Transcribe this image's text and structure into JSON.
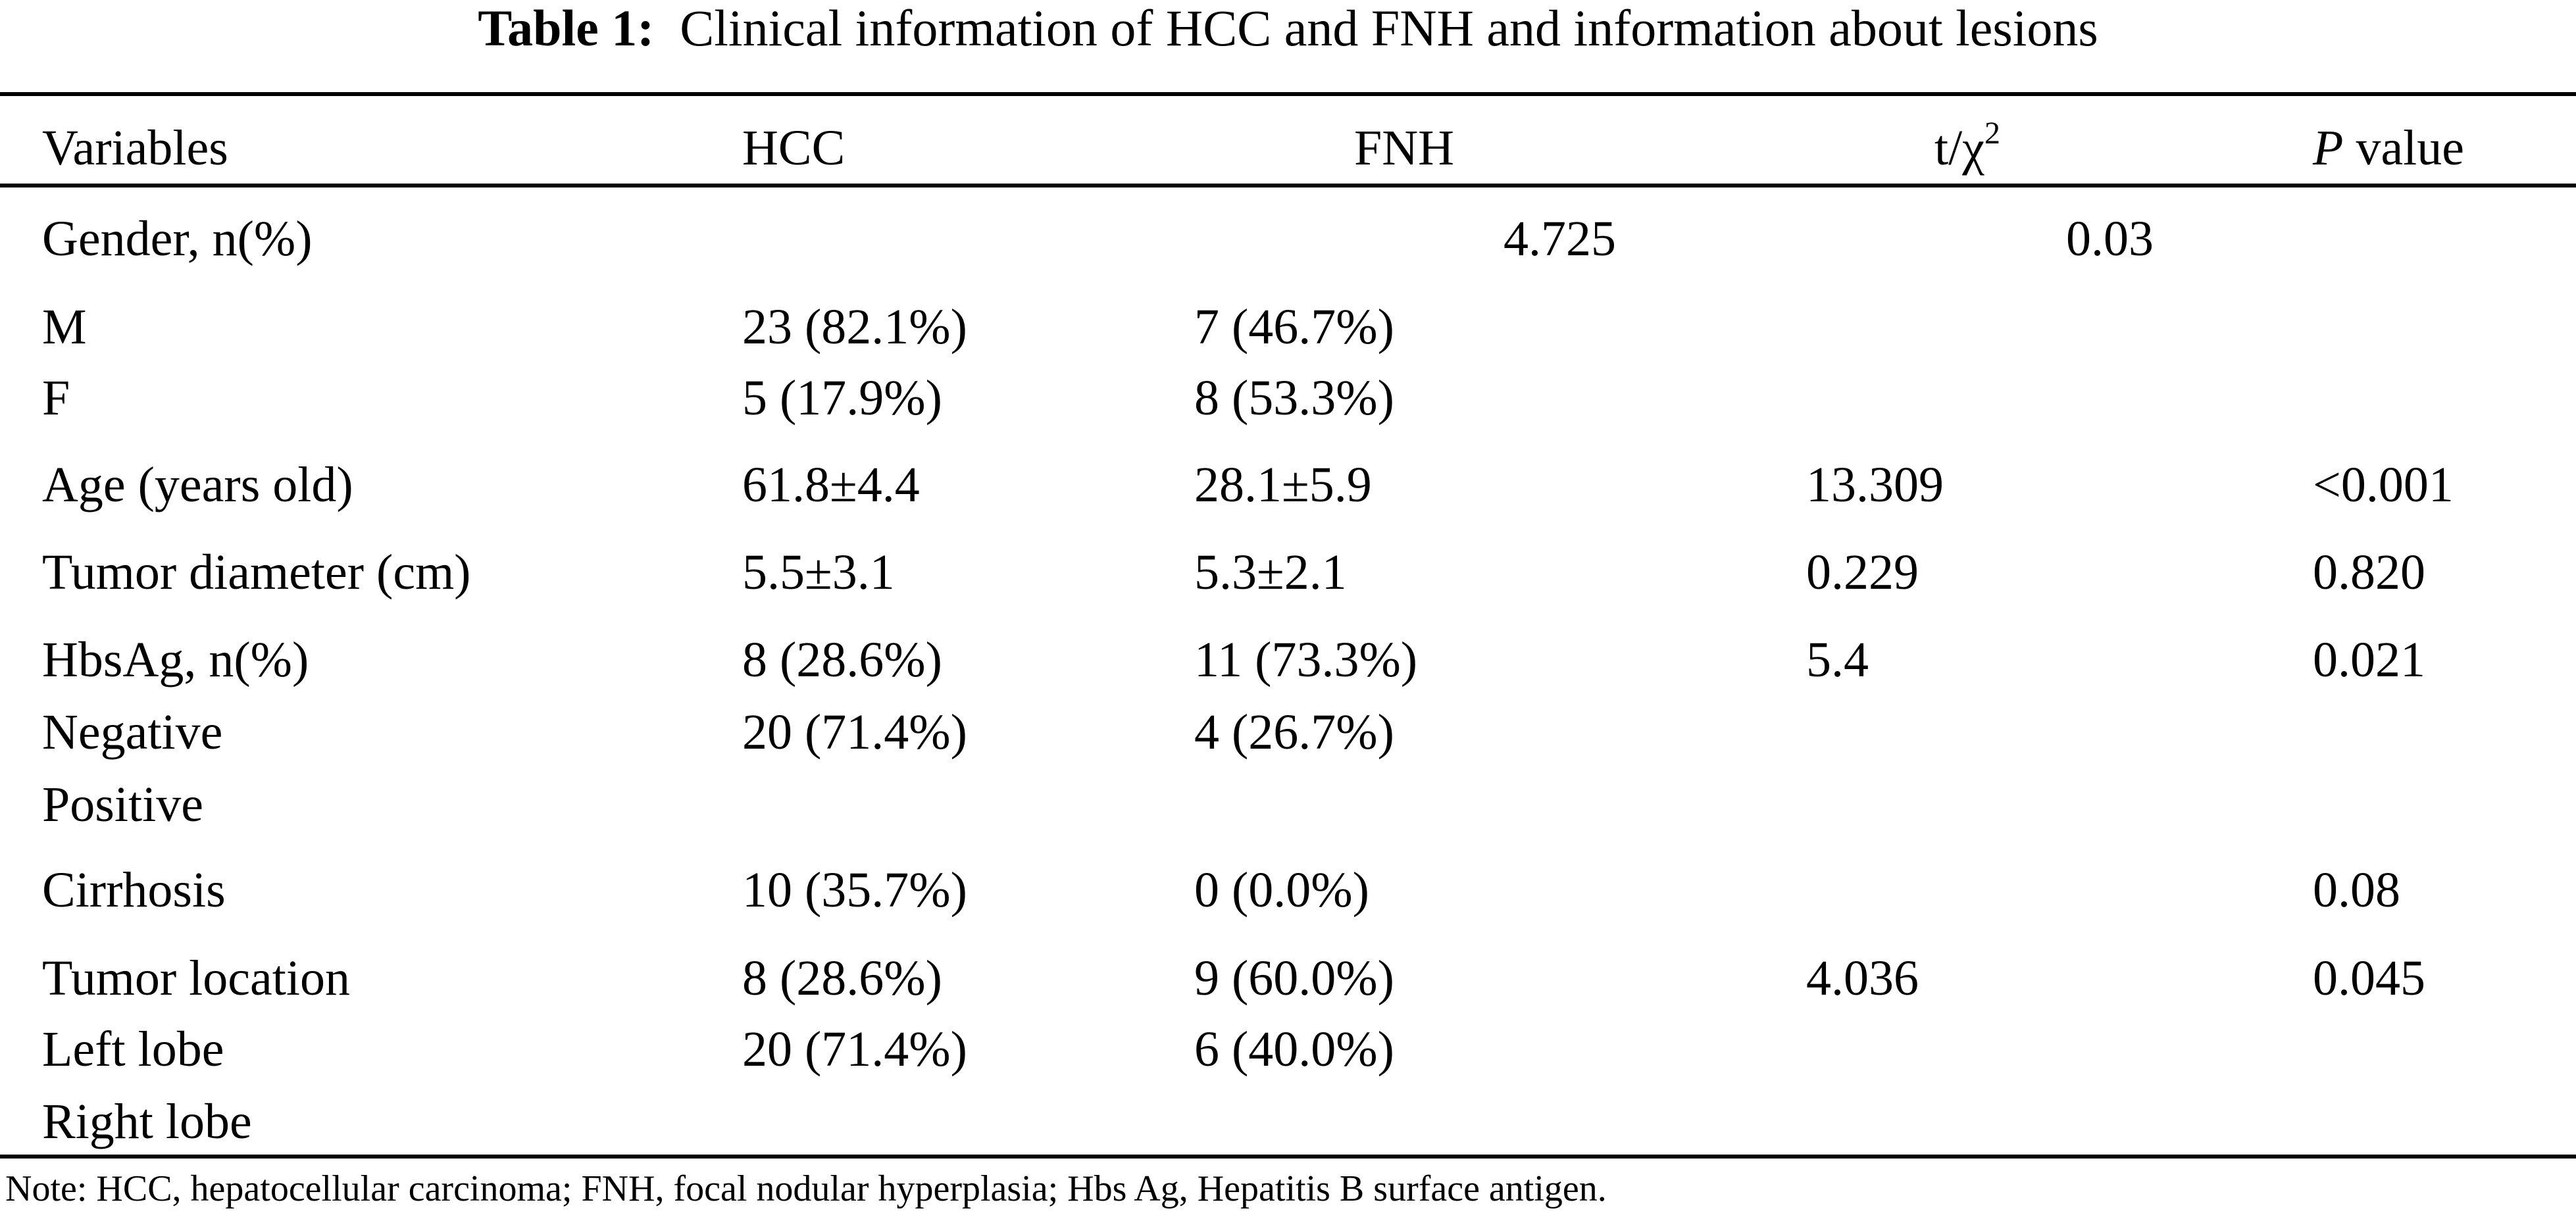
{
  "title": {
    "label": "Table 1:",
    "text": "Clinical information of HCC and FNH and information about lesions"
  },
  "columns": {
    "variables": "Variables",
    "hcc": "HCC",
    "fnh": "FNH",
    "stat_base": "t/χ",
    "stat_sup": "2",
    "p_italic": "P",
    "p_rest": " value"
  },
  "rows": [
    {
      "variable": "Gender, n(%)",
      "hcc": "",
      "fnh": "",
      "stat": "4.725",
      "p": "0.03"
    },
    {
      "variable": "M",
      "hcc": "23 (82.1%)",
      "fnh": "7 (46.7%)",
      "stat": "",
      "p": ""
    },
    {
      "variable": "F",
      "hcc": "5 (17.9%)",
      "fnh": "8 (53.3%)",
      "stat": "",
      "p": ""
    },
    {
      "variable": "Age (years old)",
      "hcc": "61.8±4.4",
      "fnh": "28.1±5.9",
      "stat": "13.309",
      "p": "<0.001"
    },
    {
      "variable": "Tumor diameter (cm)",
      "hcc": "5.5±3.1",
      "fnh": "5.3±2.1",
      "stat": "0.229",
      "p": "0.820"
    },
    {
      "variable": "HbsAg, n(%)",
      "hcc": "8 (28.6%)",
      "fnh": "11 (73.3%)",
      "stat": "5.4",
      "p": "0.021"
    },
    {
      "variable": "Negative",
      "hcc": "20 (71.4%)",
      "fnh": "4 (26.7%)",
      "stat": "",
      "p": ""
    },
    {
      "variable": "Positive",
      "hcc": "",
      "fnh": "",
      "stat": "",
      "p": ""
    },
    {
      "variable": "Cirrhosis",
      "hcc": "10 (35.7%)",
      "fnh": "0 (0.0%)",
      "stat": "",
      "p": "0.08"
    },
    {
      "variable": "Tumor location",
      "hcc": "8 (28.6%)",
      "fnh": "9 (60.0%)",
      "stat": "4.036",
      "p": "0.045"
    },
    {
      "variable": "Left lobe",
      "hcc": "20 (71.4%)",
      "fnh": "6 (40.0%)",
      "stat": "",
      "p": ""
    },
    {
      "variable": "Right lobe",
      "hcc": "",
      "fnh": "",
      "stat": "",
      "p": ""
    }
  ],
  "note": "Note: HCC, hepatocellular carcinoma; FNH, focal nodular hyperplasia; Hbs Ag, Hepatitis B surface antigen."
}
